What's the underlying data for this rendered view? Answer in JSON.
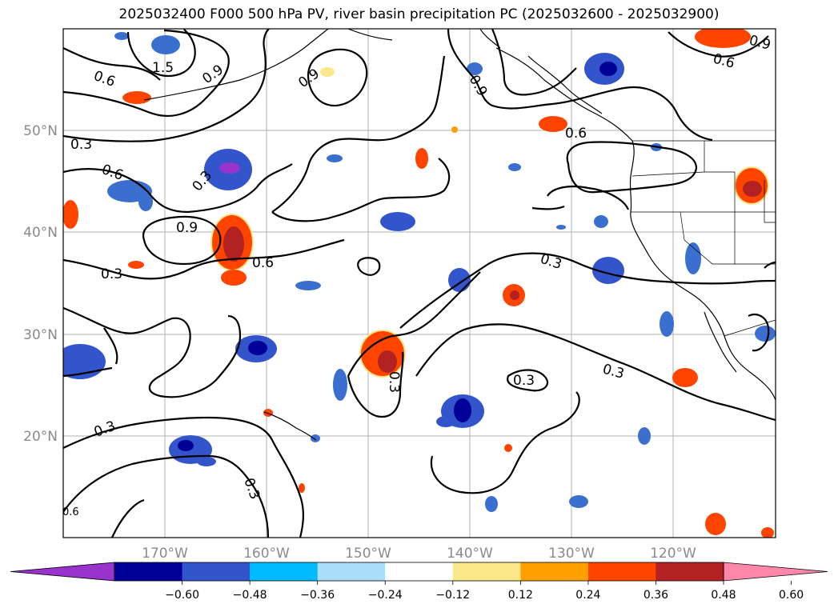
{
  "title": "2025032400 F000 500 hPa PV, river basin precipitation PC (2025032600 - 2025032900)",
  "map": {
    "lon_range": [
      -180,
      -110
    ],
    "lat_range": [
      10,
      60
    ],
    "lat_labels": [
      "50°N",
      "40°N",
      "30°N",
      "20°N"
    ],
    "lon_labels": [
      "170°W",
      "160°W",
      "150°W",
      "140°W",
      "130°W",
      "120°W"
    ],
    "contour_labels": [
      "1.5",
      "0.6",
      "0.9",
      "0.9",
      "0.9",
      "0.3",
      "0.6",
      "0.3",
      "0.6",
      "0.9",
      "0.3",
      "0.6",
      "0.6",
      "0.3",
      "0.3",
      "0.3",
      "0.3",
      "0.3",
      "0.3",
      "0.9",
      "0.6"
    ]
  },
  "colorbar": {
    "ticks": [
      "−0.60",
      "−0.48",
      "−0.36",
      "−0.24",
      "−0.12",
      "0.12",
      "0.24",
      "0.36",
      "0.48",
      "0.60"
    ],
    "colors": [
      "#9933cc",
      "#000099",
      "#3355cc",
      "#00bbff",
      "#aaddf8",
      "#ffffff",
      "#fbe88a",
      "#ffa000",
      "#ff4400",
      "#b22222",
      "#ff88aa"
    ]
  }
}
